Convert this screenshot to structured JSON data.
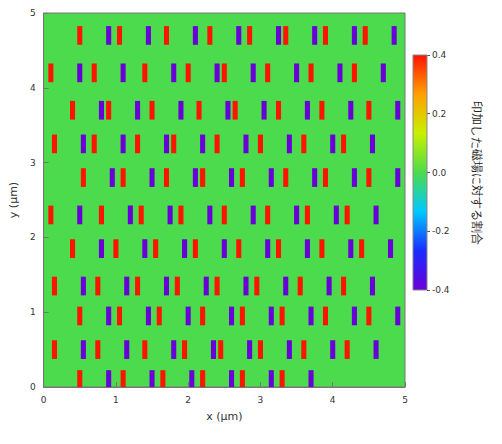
{
  "chart_data": {
    "type": "heatmap",
    "x_label": "x (μm)",
    "y_label": "y (μm)",
    "colorbar_label": "印加した磁場に対する割合",
    "xlim": [
      0,
      5
    ],
    "ylim": [
      0,
      5
    ],
    "xticks": [
      0,
      1,
      2,
      3,
      4,
      5
    ],
    "yticks": [
      0,
      1,
      2,
      3,
      4,
      5
    ],
    "color_range": [
      -0.4,
      0.4
    ],
    "color_ticks": [
      -0.4,
      -0.2,
      {
        "value": 0,
        "label": "0.0"
      },
      0.2,
      0.4
    ],
    "cell_size": [
      0.07,
      0.25
    ],
    "background_value": 0,
    "cells": [
      [
        0.5,
        4.7,
        0.4
      ],
      [
        1.05,
        4.7,
        0.4
      ],
      [
        1.7,
        4.7,
        0.4
      ],
      [
        2.3,
        4.7,
        0.4
      ],
      [
        2.85,
        4.7,
        0.4
      ],
      [
        3.35,
        4.7,
        0.4
      ],
      [
        3.9,
        4.7,
        0.4
      ],
      [
        4.45,
        4.7,
        0.4
      ],
      [
        0.9,
        4.7,
        -0.4
      ],
      [
        1.45,
        4.7,
        -0.4
      ],
      [
        2.1,
        4.7,
        -0.4
      ],
      [
        2.7,
        4.7,
        -0.4
      ],
      [
        3.25,
        4.7,
        -0.4
      ],
      [
        3.75,
        4.7,
        -0.4
      ],
      [
        4.3,
        4.7,
        -0.4
      ],
      [
        4.85,
        4.7,
        -0.4
      ],
      [
        0.1,
        4.2,
        0.4
      ],
      [
        0.7,
        4.2,
        0.4
      ],
      [
        1.4,
        4.2,
        0.4
      ],
      [
        2.0,
        4.2,
        0.4
      ],
      [
        2.5,
        4.2,
        0.4
      ],
      [
        3.1,
        4.2,
        0.4
      ],
      [
        3.7,
        4.2,
        0.4
      ],
      [
        4.3,
        4.2,
        0.4
      ],
      [
        0.5,
        4.2,
        -0.4
      ],
      [
        1.1,
        4.2,
        -0.4
      ],
      [
        1.8,
        4.2,
        -0.4
      ],
      [
        2.4,
        4.2,
        -0.4
      ],
      [
        2.9,
        4.2,
        -0.4
      ],
      [
        3.5,
        4.2,
        -0.4
      ],
      [
        4.1,
        4.2,
        -0.4
      ],
      [
        4.7,
        4.2,
        -0.4
      ],
      [
        0.4,
        3.7,
        0.4
      ],
      [
        0.9,
        3.7,
        0.4
      ],
      [
        1.5,
        3.7,
        0.4
      ],
      [
        2.15,
        3.7,
        0.4
      ],
      [
        2.65,
        3.7,
        0.4
      ],
      [
        3.25,
        3.7,
        0.4
      ],
      [
        3.85,
        3.7,
        0.4
      ],
      [
        4.5,
        3.7,
        0.4
      ],
      [
        0.8,
        3.7,
        -0.4
      ],
      [
        1.3,
        3.7,
        -0.4
      ],
      [
        1.9,
        3.7,
        -0.4
      ],
      [
        2.55,
        3.7,
        -0.4
      ],
      [
        3.05,
        3.7,
        -0.4
      ],
      [
        3.65,
        3.7,
        -0.4
      ],
      [
        4.25,
        3.7,
        -0.4
      ],
      [
        4.9,
        3.7,
        -0.4
      ],
      [
        0.15,
        3.25,
        0.4
      ],
      [
        0.7,
        3.25,
        0.4
      ],
      [
        1.3,
        3.25,
        0.4
      ],
      [
        1.8,
        3.25,
        0.4
      ],
      [
        2.4,
        3.25,
        0.4
      ],
      [
        3.0,
        3.25,
        0.4
      ],
      [
        3.6,
        3.25,
        0.4
      ],
      [
        4.15,
        3.25,
        0.4
      ],
      [
        0.55,
        3.25,
        -0.4
      ],
      [
        1.1,
        3.25,
        -0.4
      ],
      [
        1.7,
        3.25,
        -0.4
      ],
      [
        2.2,
        3.25,
        -0.4
      ],
      [
        2.8,
        3.25,
        -0.4
      ],
      [
        3.4,
        3.25,
        -0.4
      ],
      [
        4.0,
        3.25,
        -0.4
      ],
      [
        4.55,
        3.25,
        -0.4
      ],
      [
        0.55,
        2.8,
        0.4
      ],
      [
        1.1,
        2.8,
        0.4
      ],
      [
        1.7,
        2.8,
        0.4
      ],
      [
        2.2,
        2.8,
        0.4
      ],
      [
        2.75,
        2.8,
        0.4
      ],
      [
        3.35,
        2.8,
        0.4
      ],
      [
        3.9,
        2.8,
        0.4
      ],
      [
        4.5,
        2.8,
        0.4
      ],
      [
        0.95,
        2.8,
        -0.4
      ],
      [
        1.5,
        2.8,
        -0.4
      ],
      [
        2.1,
        2.8,
        -0.4
      ],
      [
        2.6,
        2.8,
        -0.4
      ],
      [
        3.15,
        2.8,
        -0.4
      ],
      [
        3.75,
        2.8,
        -0.4
      ],
      [
        4.3,
        2.8,
        -0.4
      ],
      [
        4.9,
        2.8,
        -0.4
      ],
      [
        0.1,
        2.3,
        0.4
      ],
      [
        0.8,
        2.3,
        0.4
      ],
      [
        1.35,
        2.3,
        0.4
      ],
      [
        1.9,
        2.3,
        0.4
      ],
      [
        2.5,
        2.3,
        0.4
      ],
      [
        3.1,
        2.3,
        0.4
      ],
      [
        3.65,
        2.3,
        0.4
      ],
      [
        4.2,
        2.3,
        0.4
      ],
      [
        0.5,
        2.3,
        -0.4
      ],
      [
        1.2,
        2.3,
        -0.4
      ],
      [
        1.75,
        2.3,
        -0.4
      ],
      [
        2.3,
        2.3,
        -0.4
      ],
      [
        2.9,
        2.3,
        -0.4
      ],
      [
        3.5,
        2.3,
        -0.4
      ],
      [
        4.05,
        2.3,
        -0.4
      ],
      [
        4.6,
        2.3,
        -0.4
      ],
      [
        0.4,
        1.85,
        0.4
      ],
      [
        1.0,
        1.85,
        0.4
      ],
      [
        1.55,
        1.85,
        0.4
      ],
      [
        2.1,
        1.85,
        0.4
      ],
      [
        2.7,
        1.85,
        0.4
      ],
      [
        3.25,
        1.85,
        0.4
      ],
      [
        3.85,
        1.85,
        0.4
      ],
      [
        4.4,
        1.85,
        0.4
      ],
      [
        0.8,
        1.85,
        -0.4
      ],
      [
        1.4,
        1.85,
        -0.4
      ],
      [
        1.95,
        1.85,
        -0.4
      ],
      [
        2.5,
        1.85,
        -0.4
      ],
      [
        3.1,
        1.85,
        -0.4
      ],
      [
        3.65,
        1.85,
        -0.4
      ],
      [
        4.25,
        1.85,
        -0.4
      ],
      [
        4.8,
        1.85,
        -0.4
      ],
      [
        0.15,
        1.35,
        0.4
      ],
      [
        0.75,
        1.35,
        0.4
      ],
      [
        1.3,
        1.35,
        0.4
      ],
      [
        1.85,
        1.35,
        0.4
      ],
      [
        2.4,
        1.35,
        0.4
      ],
      [
        2.95,
        1.35,
        0.4
      ],
      [
        3.55,
        1.35,
        0.4
      ],
      [
        4.15,
        1.35,
        0.4
      ],
      [
        0.55,
        1.35,
        -0.4
      ],
      [
        1.15,
        1.35,
        -0.4
      ],
      [
        1.7,
        1.35,
        -0.4
      ],
      [
        2.25,
        1.35,
        -0.4
      ],
      [
        2.8,
        1.35,
        -0.4
      ],
      [
        3.35,
        1.35,
        -0.4
      ],
      [
        3.95,
        1.35,
        -0.4
      ],
      [
        4.55,
        1.35,
        -0.4
      ],
      [
        0.5,
        0.95,
        0.4
      ],
      [
        1.05,
        0.95,
        0.4
      ],
      [
        1.6,
        0.95,
        0.4
      ],
      [
        2.2,
        0.95,
        0.4
      ],
      [
        2.75,
        0.95,
        0.4
      ],
      [
        3.3,
        0.95,
        0.4
      ],
      [
        3.9,
        0.95,
        0.4
      ],
      [
        4.5,
        0.95,
        0.4
      ],
      [
        0.9,
        0.95,
        -0.4
      ],
      [
        1.45,
        0.95,
        -0.4
      ],
      [
        2.0,
        0.95,
        -0.4
      ],
      [
        2.6,
        0.95,
        -0.4
      ],
      [
        3.15,
        0.95,
        -0.4
      ],
      [
        3.7,
        0.95,
        -0.4
      ],
      [
        4.3,
        0.95,
        -0.4
      ],
      [
        4.9,
        0.95,
        -0.4
      ],
      [
        0.15,
        0.5,
        0.4
      ],
      [
        0.75,
        0.5,
        0.4
      ],
      [
        1.4,
        0.5,
        0.4
      ],
      [
        1.95,
        0.5,
        0.4
      ],
      [
        2.45,
        0.5,
        0.4
      ],
      [
        3.0,
        0.5,
        0.4
      ],
      [
        3.6,
        0.5,
        0.4
      ],
      [
        4.2,
        0.5,
        0.4
      ],
      [
        0.55,
        0.5,
        -0.4
      ],
      [
        1.15,
        0.5,
        -0.4
      ],
      [
        1.8,
        0.5,
        -0.4
      ],
      [
        2.35,
        0.5,
        -0.4
      ],
      [
        2.85,
        0.5,
        -0.4
      ],
      [
        3.4,
        0.5,
        -0.4
      ],
      [
        4.0,
        0.5,
        -0.4
      ],
      [
        4.6,
        0.5,
        -0.4
      ],
      [
        0.5,
        0.1,
        0.4
      ],
      [
        1.1,
        0.1,
        0.4
      ],
      [
        1.65,
        0.1,
        0.4
      ],
      [
        2.2,
        0.1,
        0.4
      ],
      [
        2.75,
        0.1,
        0.4
      ],
      [
        3.3,
        0.1,
        0.4
      ],
      [
        0.9,
        0.1,
        -0.4
      ],
      [
        1.5,
        0.1,
        -0.4
      ],
      [
        2.05,
        0.1,
        -0.4
      ],
      [
        2.6,
        0.1,
        -0.4
      ],
      [
        3.15,
        0.1,
        -0.4
      ],
      [
        3.7,
        0.1,
        -0.4
      ]
    ]
  }
}
